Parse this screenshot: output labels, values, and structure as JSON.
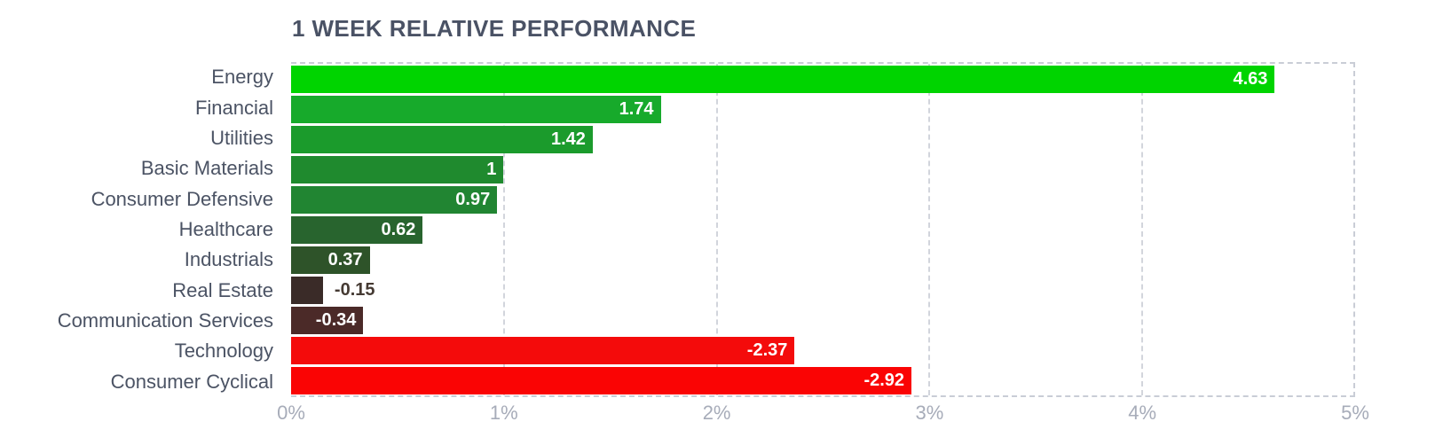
{
  "chart_data": {
    "type": "bar",
    "orientation": "horizontal",
    "title": "1 WEEK RELATIVE PERFORMANCE",
    "xlabel": "",
    "ylabel": "",
    "legend": "none",
    "grid": "dashed-vertical",
    "x_axis": {
      "min": 0,
      "max": 5,
      "ticks": [
        "0%",
        "1%",
        "2%",
        "3%",
        "4%",
        "5%"
      ],
      "tick_values": [
        0,
        1,
        2,
        3,
        4,
        5
      ]
    },
    "categories": [
      "Energy",
      "Financial",
      "Utilities",
      "Basic Materials",
      "Consumer Defensive",
      "Healthcare",
      "Industrials",
      "Real Estate",
      "Communication Services",
      "Technology",
      "Consumer Cyclical"
    ],
    "values": [
      4.63,
      1.74,
      1.42,
      1,
      0.97,
      0.62,
      0.37,
      -0.15,
      -0.34,
      -2.37,
      -2.92
    ],
    "items": [
      {
        "label": "Energy",
        "value": 4.63,
        "display": "4.63",
        "color": "#00d400",
        "label_position": "inside"
      },
      {
        "label": "Financial",
        "value": 1.74,
        "display": "1.74",
        "color": "#17aa2b",
        "label_position": "inside"
      },
      {
        "label": "Utilities",
        "value": 1.42,
        "display": "1.42",
        "color": "#1b9b2c",
        "label_position": "inside"
      },
      {
        "label": "Basic Materials",
        "value": 1,
        "display": "1",
        "color": "#1f8a2e",
        "label_position": "inside"
      },
      {
        "label": "Consumer Defensive",
        "value": 0.97,
        "display": "0.97",
        "color": "#218532",
        "label_position": "inside"
      },
      {
        "label": "Healthcare",
        "value": 0.62,
        "display": "0.62",
        "color": "#28642e",
        "label_position": "inside"
      },
      {
        "label": "Industrials",
        "value": 0.37,
        "display": "0.37",
        "color": "#2e5329",
        "label_position": "inside"
      },
      {
        "label": "Real Estate",
        "value": -0.15,
        "display": "-0.15",
        "color": "#3a2b28",
        "label_position": "outside"
      },
      {
        "label": "Communication Services",
        "value": -0.34,
        "display": "-0.34",
        "color": "#4b2a28",
        "label_position": "inside"
      },
      {
        "label": "Technology",
        "value": -2.37,
        "display": "-2.37",
        "color": "#f40b0b",
        "label_position": "inside"
      },
      {
        "label": "Consumer Cyclical",
        "value": -2.92,
        "display": "-2.92",
        "color": "#fa0404",
        "label_position": "inside"
      }
    ]
  },
  "colors": {
    "background": "#ffffff",
    "title_text": "#4a5265",
    "category_text": "#4b5364",
    "tick_text": "#a7acb9",
    "grid_dash": "#d2d5dc",
    "border_dash": "#c9cdd6",
    "value_text_inside": "#ffffff",
    "value_text_outside": "#453a33"
  }
}
